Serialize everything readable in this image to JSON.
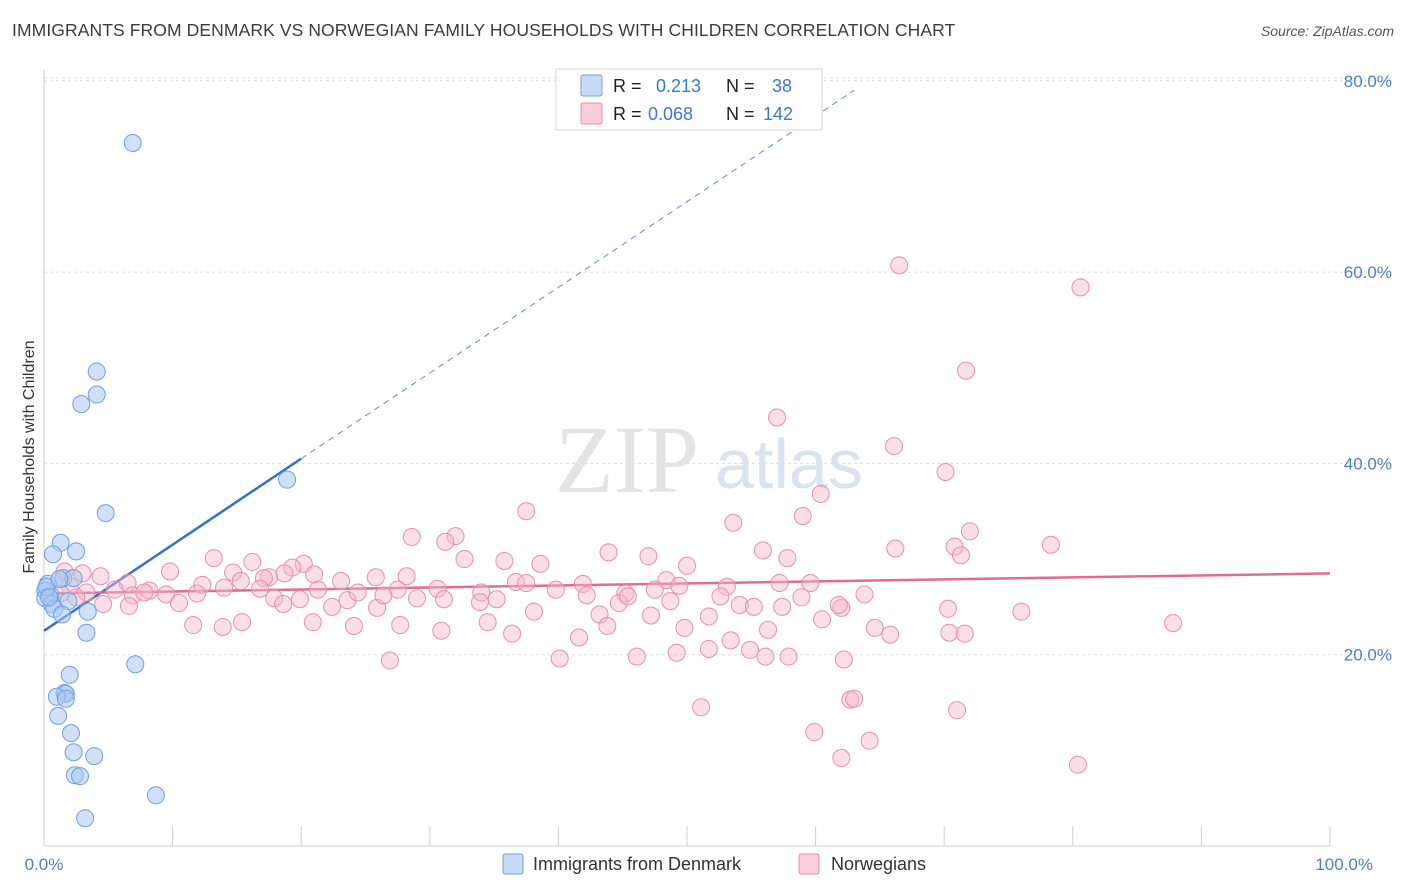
{
  "title": "IMMIGRANTS FROM DENMARK VS NORWEGIAN FAMILY HOUSEHOLDS WITH CHILDREN CORRELATION CHART",
  "source": "Source: ZipAtlas.com",
  "watermark": {
    "zip": "ZIP",
    "atlas": "atlas"
  },
  "colors": {
    "blue": "#a9c8f0",
    "blue_stroke": "#6fa0df",
    "blue_line": "#2f72d1",
    "pink": "#f5b8cc",
    "pink_stroke": "#e88fac",
    "pink_line": "#e46a96",
    "axis_label_blue": "#4a7fd1",
    "grid": "#dddddd"
  },
  "legend": {
    "rows": [
      {
        "r_label": "R =",
        "r_value": "0.213",
        "n_label": "N =",
        "n_value": "38"
      },
      {
        "r_label": "R =",
        "r_value": "0.068",
        "n_label": "N =",
        "n_value": "142"
      }
    ]
  },
  "bottom_legend": [
    "Immigrants from Denmark",
    "Norwegians"
  ],
  "chart_data": {
    "type": "scatter",
    "title": "IMMIGRANTS FROM DENMARK VS NORWEGIAN FAMILY HOUSEHOLDS WITH CHILDREN CORRELATION CHART",
    "xlabel": "",
    "ylabel": "Family Households with Children",
    "xlim": [
      0,
      100
    ],
    "ylim": [
      0,
      84
    ],
    "x_tick_labels": [
      "0.0%",
      "100.0%"
    ],
    "y_ticks": [
      20,
      40,
      60,
      80
    ],
    "y_tick_labels": [
      "20.0%",
      "40.0%",
      "60.0%",
      "80.0%"
    ],
    "series": [
      {
        "name": "Immigrants from Denmark",
        "r": 0.213,
        "n": 38,
        "trend": {
          "x0": 0,
          "y0": 22.5,
          "x1": 20,
          "y1": 40.5,
          "dash_to_x": 63,
          "dash_to_y": 79
        },
        "points": [
          [
            6.9,
            73.5
          ],
          [
            4.1,
            49.6
          ],
          [
            4.1,
            47.2
          ],
          [
            2.9,
            46.2
          ],
          [
            18.9,
            38.3
          ],
          [
            4.8,
            34.8
          ],
          [
            1.3,
            31.7
          ],
          [
            2.5,
            30.8
          ],
          [
            0.7,
            30.5
          ],
          [
            1.5,
            28.0
          ],
          [
            2.3,
            28.0
          ],
          [
            0.3,
            27.4
          ],
          [
            0.5,
            26.2
          ],
          [
            0.1,
            26.7
          ],
          [
            0.1,
            25.9
          ],
          [
            0.6,
            25.3
          ],
          [
            1.9,
            25.6
          ],
          [
            0.8,
            24.8
          ],
          [
            3.4,
            24.5
          ],
          [
            1.4,
            24.2
          ],
          [
            3.3,
            22.3
          ],
          [
            7.1,
            19.0
          ],
          [
            2.0,
            17.9
          ],
          [
            1.6,
            16.0
          ],
          [
            1.7,
            15.9
          ],
          [
            1.0,
            15.6
          ],
          [
            1.7,
            15.4
          ],
          [
            1.1,
            13.6
          ],
          [
            2.1,
            11.8
          ],
          [
            2.3,
            9.8
          ],
          [
            3.9,
            9.4
          ],
          [
            2.4,
            7.4
          ],
          [
            2.8,
            7.3
          ],
          [
            8.7,
            5.3
          ],
          [
            3.2,
            2.9
          ],
          [
            0.2,
            27.1
          ],
          [
            1.2,
            27.9
          ],
          [
            0.4,
            26.0
          ]
        ]
      },
      {
        "name": "Norwegians",
        "r": 0.068,
        "n": 142,
        "trend": {
          "x0": 0,
          "y0": 26.4,
          "x1": 100,
          "y1": 28.5
        },
        "points": [
          [
            66.5,
            60.7
          ],
          [
            80.6,
            58.4
          ],
          [
            71.7,
            49.7
          ],
          [
            57.0,
            44.8
          ],
          [
            66.1,
            41.8
          ],
          [
            70.1,
            39.1
          ],
          [
            60.4,
            36.8
          ],
          [
            37.5,
            35.0
          ],
          [
            59.0,
            34.5
          ],
          [
            53.6,
            33.8
          ],
          [
            72.0,
            32.9
          ],
          [
            32.0,
            32.4
          ],
          [
            28.6,
            32.3
          ],
          [
            31.2,
            31.8
          ],
          [
            78.3,
            31.5
          ],
          [
            70.8,
            31.3
          ],
          [
            66.2,
            31.1
          ],
          [
            55.9,
            30.9
          ],
          [
            43.9,
            30.7
          ],
          [
            71.3,
            30.4
          ],
          [
            47.0,
            30.3
          ],
          [
            13.2,
            30.1
          ],
          [
            57.8,
            30.1
          ],
          [
            32.7,
            30.0
          ],
          [
            35.8,
            29.8
          ],
          [
            20.2,
            29.5
          ],
          [
            16.2,
            29.7
          ],
          [
            38.6,
            29.5
          ],
          [
            50.0,
            29.3
          ],
          [
            19.3,
            29.1
          ],
          [
            14.7,
            28.6
          ],
          [
            18.7,
            28.5
          ],
          [
            1.6,
            28.7
          ],
          [
            3.0,
            28.5
          ],
          [
            4.4,
            28.2
          ],
          [
            9.8,
            28.7
          ],
          [
            17.5,
            28.1
          ],
          [
            28.2,
            28.2
          ],
          [
            21.0,
            28.4
          ],
          [
            17.1,
            28.0
          ],
          [
            15.3,
            27.7
          ],
          [
            25.8,
            28.1
          ],
          [
            36.7,
            27.6
          ],
          [
            48.4,
            27.8
          ],
          [
            23.1,
            27.7
          ],
          [
            57.2,
            27.5
          ],
          [
            41.9,
            27.4
          ],
          [
            49.4,
            27.2
          ],
          [
            53.1,
            27.1
          ],
          [
            59.6,
            27.5
          ],
          [
            12.3,
            27.3
          ],
          [
            6.5,
            27.5
          ],
          [
            14.0,
            27.0
          ],
          [
            16.8,
            26.9
          ],
          [
            21.3,
            26.8
          ],
          [
            27.5,
            26.8
          ],
          [
            30.6,
            26.9
          ],
          [
            39.8,
            26.8
          ],
          [
            34.0,
            26.5
          ],
          [
            5.5,
            26.8
          ],
          [
            8.2,
            26.7
          ],
          [
            11.9,
            26.4
          ],
          [
            9.5,
            26.3
          ],
          [
            6.9,
            26.2
          ],
          [
            3.3,
            26.5
          ],
          [
            42.2,
            26.2
          ],
          [
            45.2,
            26.4
          ],
          [
            52.6,
            26.1
          ],
          [
            58.9,
            26.0
          ],
          [
            63.8,
            26.3
          ],
          [
            2.5,
            26.0
          ],
          [
            17.9,
            25.9
          ],
          [
            23.6,
            25.7
          ],
          [
            31.1,
            25.8
          ],
          [
            33.9,
            25.5
          ],
          [
            44.7,
            25.4
          ],
          [
            48.7,
            25.6
          ],
          [
            54.1,
            25.2
          ],
          [
            57.4,
            25.0
          ],
          [
            62.0,
            24.9
          ],
          [
            70.3,
            24.8
          ],
          [
            4.6,
            25.3
          ],
          [
            6.6,
            25.1
          ],
          [
            10.5,
            25.4
          ],
          [
            22.4,
            25.0
          ],
          [
            25.9,
            24.9
          ],
          [
            38.1,
            24.5
          ],
          [
            43.2,
            24.2
          ],
          [
            47.2,
            24.1
          ],
          [
            51.7,
            24.0
          ],
          [
            60.5,
            23.7
          ],
          [
            76.0,
            24.5
          ],
          [
            87.8,
            23.3
          ],
          [
            11.6,
            23.1
          ],
          [
            15.4,
            23.4
          ],
          [
            20.9,
            23.4
          ],
          [
            24.1,
            23.0
          ],
          [
            27.7,
            23.1
          ],
          [
            34.5,
            23.4
          ],
          [
            43.8,
            23.0
          ],
          [
            49.8,
            22.8
          ],
          [
            56.3,
            22.6
          ],
          [
            64.6,
            22.8
          ],
          [
            70.4,
            22.3
          ],
          [
            71.6,
            22.2
          ],
          [
            13.9,
            22.9
          ],
          [
            30.9,
            22.5
          ],
          [
            36.4,
            22.2
          ],
          [
            41.6,
            21.8
          ],
          [
            53.4,
            21.5
          ],
          [
            65.8,
            22.1
          ],
          [
            51.7,
            20.6
          ],
          [
            54.9,
            20.5
          ],
          [
            57.9,
            19.8
          ],
          [
            49.2,
            20.2
          ],
          [
            46.1,
            19.8
          ],
          [
            40.1,
            19.6
          ],
          [
            62.2,
            19.5
          ],
          [
            56.1,
            19.8
          ],
          [
            26.9,
            19.4
          ],
          [
            62.7,
            15.3
          ],
          [
            51.1,
            14.5
          ],
          [
            71.0,
            14.2
          ],
          [
            59.9,
            11.9
          ],
          [
            64.2,
            11.0
          ],
          [
            62.0,
            9.2
          ],
          [
            80.4,
            8.5
          ],
          [
            63.0,
            15.4
          ],
          [
            2.0,
            27.2
          ],
          [
            1.3,
            26.4
          ],
          [
            7.8,
            26.5
          ],
          [
            19.9,
            25.8
          ],
          [
            29.0,
            25.9
          ],
          [
            35.2,
            25.8
          ],
          [
            37.5,
            27.5
          ],
          [
            47.5,
            26.8
          ],
          [
            55.2,
            25.0
          ],
          [
            61.8,
            25.2
          ],
          [
            18.6,
            25.3
          ],
          [
            45.4,
            26.1
          ],
          [
            24.4,
            26.5
          ],
          [
            26.4,
            26.2
          ]
        ]
      }
    ]
  }
}
